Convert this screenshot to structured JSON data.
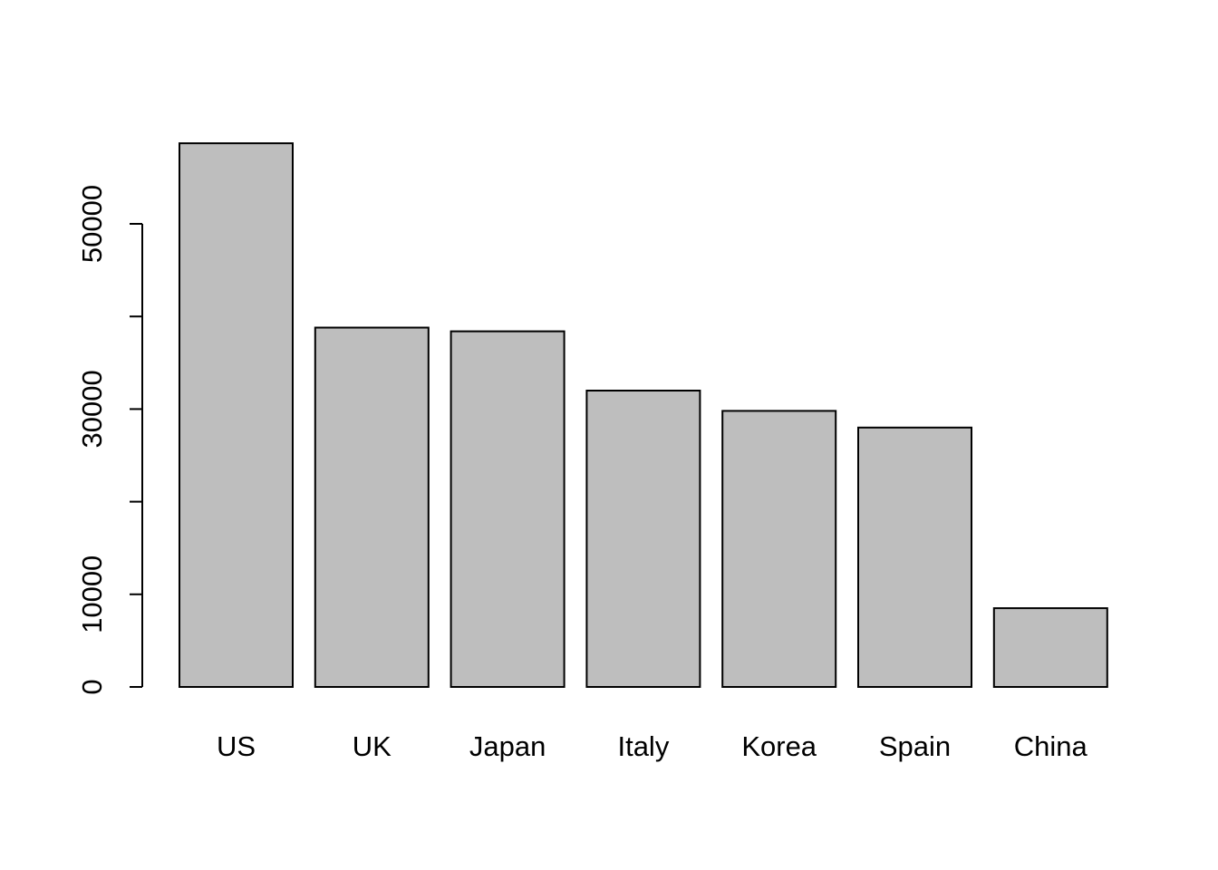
{
  "chart_data": {
    "type": "bar",
    "title": "",
    "xlabel": "",
    "ylabel": "",
    "categories": [
      "US",
      "UK",
      "Japan",
      "Italy",
      "Korea",
      "Spain",
      "China"
    ],
    "values": [
      58700,
      38800,
      38400,
      32000,
      29800,
      28000,
      8500
    ],
    "yticks": [
      0,
      10000,
      20000,
      30000,
      40000,
      50000
    ],
    "ytick_labels": [
      "0",
      "10000",
      "",
      "30000",
      "",
      "50000"
    ],
    "ylim": [
      0,
      60000
    ],
    "grid": false,
    "legend": "none",
    "colors": {
      "bar_fill": "#bebebe",
      "bar_stroke": "#000000",
      "text": "#000000",
      "background": "#ffffff"
    }
  }
}
